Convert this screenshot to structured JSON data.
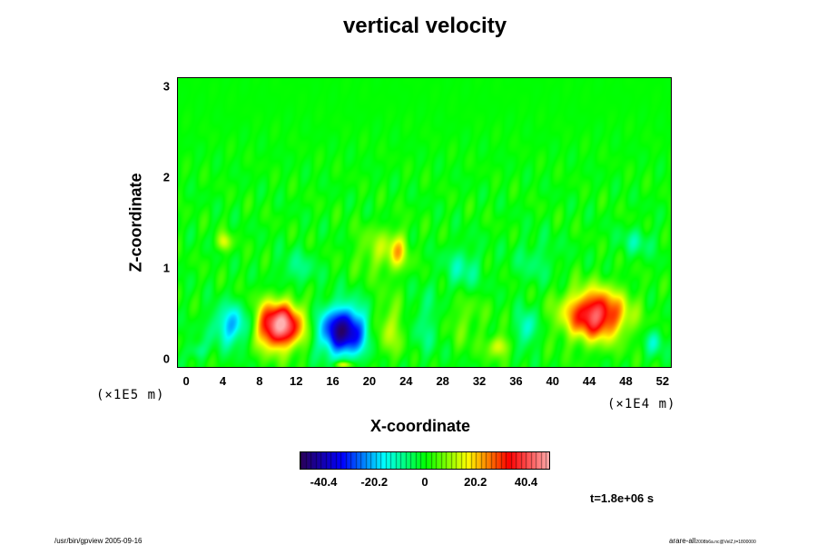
{
  "chart_data": {
    "type": "heatmap",
    "title": "vertical velocity",
    "xlabel": "X-coordinate",
    "ylabel": "Z-coordinate",
    "x_unit": "(×1E4 m)",
    "y_unit": "(×1E5 m)",
    "x_ticks": [
      "0",
      "4",
      "8",
      "12",
      "16",
      "20",
      "24",
      "28",
      "32",
      "36",
      "40",
      "44",
      "48",
      "52"
    ],
    "y_ticks": [
      "0",
      "1",
      "2",
      "3"
    ],
    "xlim": [
      -1,
      53
    ],
    "ylim": [
      -0.1,
      3.1
    ],
    "colorbar": {
      "ticks": [
        "-40.4",
        "-20.2",
        "0",
        "20.2",
        "40.4"
      ],
      "range": [
        -50,
        50
      ],
      "colors": [
        "#2a005a",
        "#0000ff",
        "#00ffff",
        "#00ff00",
        "#ffff00",
        "#ff0000",
        "#ffb0b0"
      ]
    },
    "features": [
      {
        "x": 5,
        "z": 0.38,
        "value": -22,
        "sx": 2.2,
        "sz": 0.22
      },
      {
        "x": 10,
        "z": 0.38,
        "value": 50,
        "sx": 2.6,
        "sz": 0.25
      },
      {
        "x": 17,
        "z": 0.32,
        "value": -45,
        "sx": 2.6,
        "sz": 0.27
      },
      {
        "x": 22,
        "z": 0.35,
        "value": 12,
        "sx": 2.0,
        "sz": 0.3
      },
      {
        "x": 26,
        "z": 0.4,
        "value": -8,
        "sx": 2.0,
        "sz": 0.35
      },
      {
        "x": 30,
        "z": 0.45,
        "value": 6,
        "sx": 2.5,
        "sz": 0.3
      },
      {
        "x": 34,
        "z": 0.15,
        "value": 15,
        "sx": 1.2,
        "sz": 0.12
      },
      {
        "x": 37,
        "z": 0.35,
        "value": -15,
        "sx": 1.1,
        "sz": 0.2
      },
      {
        "x": 44.5,
        "z": 0.5,
        "value": 42,
        "sx": 3.3,
        "sz": 0.27
      },
      {
        "x": 51,
        "z": 0.2,
        "value": -12,
        "sx": 1.0,
        "sz": 0.15
      },
      {
        "x": 1,
        "z": 0.1,
        "value": -10,
        "sx": 1.0,
        "sz": 0.1
      },
      {
        "x": 4,
        "z": 1.3,
        "value": 14,
        "sx": 0.8,
        "sz": 0.1
      },
      {
        "x": 12,
        "z": 1.0,
        "value": -8,
        "sx": 2.0,
        "sz": 0.2
      },
      {
        "x": 21,
        "z": 1.2,
        "value": 10,
        "sx": 2.5,
        "sz": 0.25
      },
      {
        "x": 23,
        "z": 1.2,
        "value": 14,
        "sx": 1.0,
        "sz": 0.2
      },
      {
        "x": 30,
        "z": 1.0,
        "value": -10,
        "sx": 2.0,
        "sz": 0.25
      },
      {
        "x": 38,
        "z": 1.1,
        "value": -6,
        "sx": 2.5,
        "sz": 0.25
      },
      {
        "x": 49,
        "z": 1.3,
        "value": -8,
        "sx": 2.0,
        "sz": 0.15
      },
      {
        "x": 17,
        "z": -0.05,
        "value": 20,
        "sx": 1.0,
        "sz": 0.04
      }
    ],
    "time": "t=1.8e+06 s"
  },
  "footer": {
    "left": "/usr/bin/gpview 2005-09-16",
    "right_main": "arare-all",
    "right_sub": "2008b6a.nc@VelZ,t=1800000"
  }
}
